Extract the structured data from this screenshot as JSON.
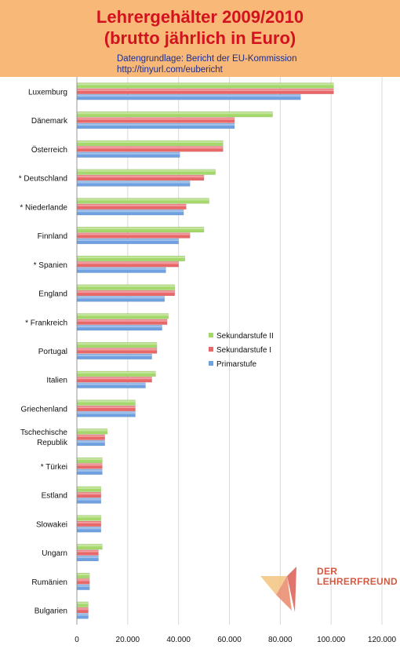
{
  "header": {
    "title_line1": "Lehrergehälter 2009/2010",
    "title_line2": "(brutto jährlich in Euro)",
    "source_line1": "Datengrundlage: Bericht der EU-Kommission",
    "source_line2": "http://tinyurl.com/eubericht"
  },
  "logo": {
    "line1": "DER",
    "line2": "LEHRERFREUND"
  },
  "colors": {
    "sek2": "#a5d86a",
    "sek1": "#e8686a",
    "prim": "#6fa0e0",
    "header_bg": "#f7b878",
    "title": "#d2121e"
  },
  "chart_data": {
    "type": "bar",
    "orientation": "horizontal",
    "categories": [
      "Luxemburg",
      "Dänemark",
      "Österreich",
      "* Deutschland",
      "* Niederlande",
      "Finnland",
      "* Spanien",
      "England",
      "* Frankreich",
      "Portugal",
      "Italien",
      "Griechenland",
      "Tschechische Republik",
      "* Türkei",
      "Estland",
      "Slowakei",
      "Ungarn",
      "Rumänien",
      "Bulgarien"
    ],
    "series": [
      {
        "name": "Sekundarstufe II",
        "values": [
          101000,
          77000,
          57500,
          54500,
          52000,
          50000,
          42500,
          38500,
          36000,
          31500,
          31000,
          23000,
          12000,
          10000,
          9500,
          9500,
          10000,
          5000,
          4500
        ]
      },
      {
        "name": "Sekundarstufe I",
        "values": [
          101000,
          62000,
          57500,
          50000,
          43000,
          44500,
          40000,
          38500,
          35500,
          31500,
          29500,
          23000,
          11000,
          10000,
          9500,
          9500,
          8500,
          5000,
          4500
        ]
      },
      {
        "name": "Primarstufe",
        "values": [
          88000,
          62000,
          40500,
          44500,
          42000,
          40000,
          35000,
          34500,
          33500,
          29500,
          27000,
          23000,
          11000,
          10000,
          9500,
          9500,
          8500,
          5000,
          4500
        ]
      }
    ],
    "xlim": [
      0,
      120000
    ],
    "xticks": [
      0,
      20000,
      40000,
      60000,
      80000,
      100000,
      120000
    ],
    "xtick_labels": [
      "0",
      "20.000",
      "40.000",
      "60.000",
      "80.000",
      "100.000",
      "120.000"
    ],
    "grid": true,
    "legend_position": "center-right"
  }
}
